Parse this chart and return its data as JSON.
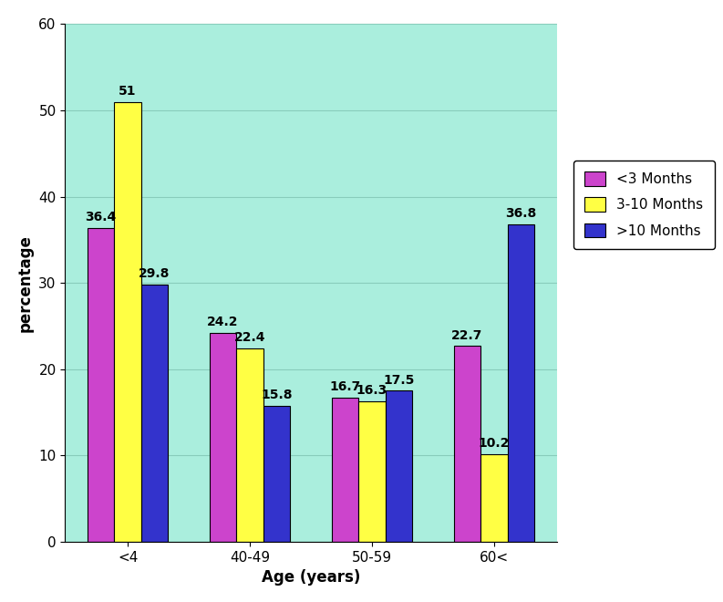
{
  "categories": [
    "<4",
    "40-49",
    "50-59",
    "60<"
  ],
  "series": [
    {
      "label": "<3 Months",
      "color": "#CC44CC",
      "values": [
        36.4,
        24.2,
        16.7,
        22.7
      ]
    },
    {
      "label": "3-10 Months",
      "color": "#FFFF44",
      "values": [
        51.0,
        22.4,
        16.3,
        10.2
      ]
    },
    {
      "label": ">10 Months",
      "color": "#3333CC",
      "values": [
        29.8,
        15.8,
        17.5,
        36.8
      ]
    }
  ],
  "ylabel": "percentage",
  "xlabel": "Age (years)",
  "ylim": [
    0,
    60
  ],
  "yticks": [
    0,
    10,
    20,
    30,
    40,
    50,
    60
  ],
  "plot_bg_color": "#AAEEDD",
  "outer_bg_color": "#FFFFFF",
  "bar_width": 0.22,
  "axis_label_fontsize": 12,
  "tick_fontsize": 11,
  "value_fontsize": 10,
  "legend_fontsize": 11,
  "figsize": [
    7.93,
    6.6
  ],
  "dpi": 100
}
